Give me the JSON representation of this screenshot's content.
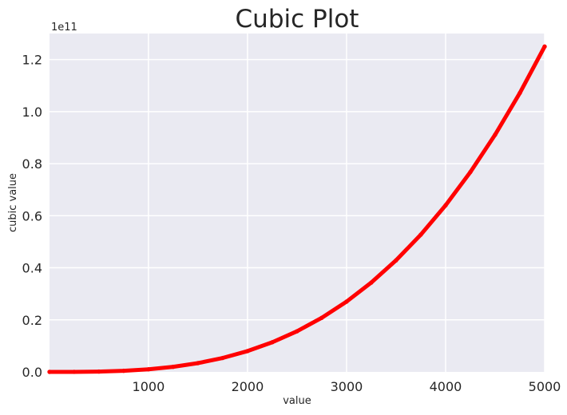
{
  "chart_data": {
    "type": "line",
    "title": "Cubic Plot",
    "xlabel": "value",
    "ylabel": "cubic value",
    "xlim": [
      1,
      5000
    ],
    "ylim": [
      0,
      130000000000
    ],
    "y_offset_label": "1e11",
    "x_ticks": [
      {
        "value": 1000,
        "label": "1000"
      },
      {
        "value": 2000,
        "label": "2000"
      },
      {
        "value": 3000,
        "label": "3000"
      },
      {
        "value": 4000,
        "label": "4000"
      },
      {
        "value": 5000,
        "label": "5000"
      }
    ],
    "y_ticks": [
      {
        "value": 0,
        "label": "0.0"
      },
      {
        "value": 20000000000,
        "label": "0.2"
      },
      {
        "value": 40000000000,
        "label": "0.4"
      },
      {
        "value": 60000000000,
        "label": "0.6"
      },
      {
        "value": 80000000000,
        "label": "0.8"
      },
      {
        "value": 100000000000,
        "label": "1.0"
      },
      {
        "value": 120000000000,
        "label": "1.2"
      }
    ],
    "series": [
      {
        "color": "#ff0000",
        "function": "y = x^3",
        "x": [
          1,
          250,
          500,
          750,
          1000,
          1250,
          1500,
          1750,
          2000,
          2250,
          2500,
          2750,
          3000,
          3250,
          3500,
          3750,
          4000,
          4250,
          4500,
          4750,
          5000
        ],
        "values": [
          1,
          15625000,
          125000000,
          421875000,
          1000000000,
          1953125000,
          3375000000,
          5359375000,
          8000000000,
          11390625000,
          15625000000,
          20796875000,
          27000000000,
          34328125000,
          42875000000,
          52734375000,
          64000000000,
          76765625000,
          91125000000,
          107171875000,
          125000000000
        ]
      }
    ],
    "grid": true,
    "legend": "none",
    "style": {
      "plot_background": "#eaeaf2",
      "grid_color": "#ffffff"
    }
  }
}
